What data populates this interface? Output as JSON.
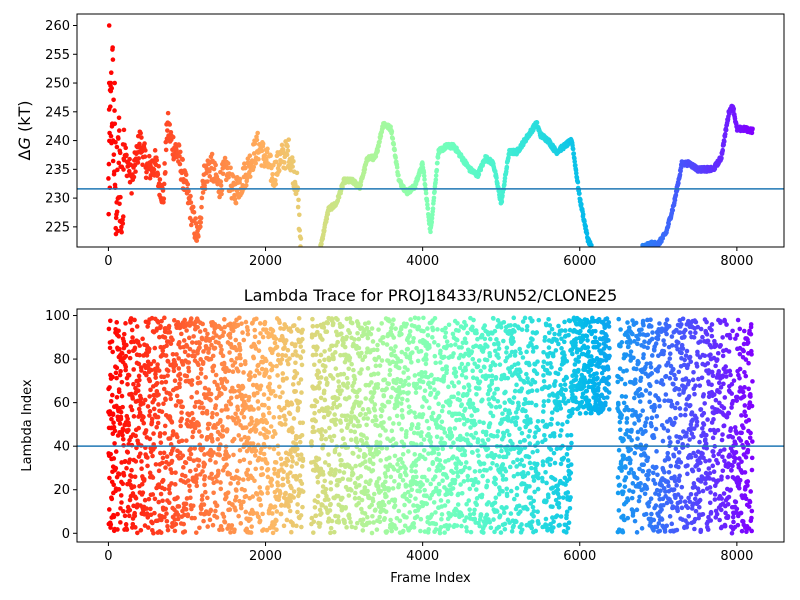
{
  "chart_data": [
    {
      "type": "scatter",
      "title": "",
      "xlabel": "",
      "ylabel": "ΔG (kT)",
      "ylabel_symbol": "Δ",
      "ylabel_var": "G",
      "ylabel_unit": " (kT)",
      "xlim": [
        -400,
        8600
      ],
      "ylim": [
        221.5,
        262
      ],
      "xticks": [
        0,
        2000,
        4000,
        6000,
        8000
      ],
      "yticks": [
        225,
        230,
        235,
        240,
        245,
        250,
        255,
        260
      ],
      "hline": 231.6,
      "hline_color": "#1f77b4",
      "grid": false,
      "colormap": "rainbow (reversed: red at start, violet at end)",
      "x_max": 8200,
      "segments": [
        {
          "x": [
            0,
            20,
            50,
            80,
            110,
            140,
            170,
            200
          ],
          "y": [
            230,
            240,
            250,
            235,
            228,
            238,
            225,
            245
          ],
          "style": "scatter"
        },
        {
          "x": [
            200,
            300,
            400,
            500,
            600,
            700,
            750,
            800,
            900,
            1000,
            1100,
            1150,
            1200,
            1300,
            1400,
            1500,
            1600,
            1700,
            1800,
            1900,
            2000,
            2100,
            2200,
            2300,
            2400,
            2450
          ],
          "y": [
            238,
            233,
            240,
            235,
            236,
            230,
            243,
            240,
            237,
            231,
            225,
            222,
            233,
            236,
            232,
            235,
            231,
            233,
            236,
            239,
            237,
            234,
            237,
            238,
            232,
            221.5
          ],
          "style": "dense"
        },
        {
          "x": [
            2700,
            2800,
            2900,
            3000,
            3100,
            3200,
            3300,
            3400,
            3500,
            3600,
            3700,
            3800,
            3900,
            4000,
            4100,
            4200,
            4300,
            4400,
            4500,
            4600,
            4700,
            4800,
            4900,
            5000,
            5100,
            5200,
            5300,
            5400,
            5450,
            5500,
            5600,
            5700,
            5800,
            5900,
            6000,
            6100,
            6150
          ],
          "y": [
            221.5,
            228,
            229,
            233,
            233,
            232,
            237,
            237,
            243,
            242,
            233,
            231,
            232,
            236,
            224,
            238,
            239,
            239,
            237,
            235,
            234,
            237,
            236,
            229,
            238,
            238,
            240,
            242,
            243,
            241,
            240,
            238,
            239,
            240,
            230,
            223,
            221.5
          ],
          "style": "line"
        },
        {
          "x": [
            6800,
            6900,
            7000,
            7100,
            7200,
            7300,
            7400,
            7500,
            7600,
            7700,
            7800,
            7900,
            7950,
            8000,
            8100,
            8200
          ],
          "y": [
            221.5,
            222,
            222,
            224,
            229,
            236,
            236,
            235,
            235,
            235,
            237,
            245,
            246,
            242,
            242,
            241.7
          ],
          "style": "line"
        }
      ]
    },
    {
      "type": "scatter",
      "title": "Lambda Trace for PROJ18433/RUN52/CLONE25",
      "xlabel": "Frame Index",
      "ylabel": "Lambda Index",
      "xlim": [
        -400,
        8600
      ],
      "ylim": [
        -4,
        103
      ],
      "xticks": [
        0,
        2000,
        4000,
        6000,
        8000
      ],
      "yticks": [
        0,
        20,
        40,
        60,
        80,
        100
      ],
      "hline": 40,
      "hline_color": "#1f77b4",
      "grid": false,
      "colormap": "rainbow (reversed: red at start, violet at end)",
      "x_max": 8200,
      "y_range": [
        0,
        99
      ],
      "point_count": 8200,
      "note_bands": [
        {
          "x": [
            0,
            2500
          ],
          "y": [
            0,
            99
          ]
        },
        {
          "x": [
            2500,
            5900
          ],
          "y": [
            0,
            99
          ]
        },
        {
          "x": [
            5900,
            6400
          ],
          "y": [
            60,
            99
          ]
        },
        {
          "x": [
            6400,
            8200
          ],
          "y": [
            0,
            99
          ]
        }
      ]
    }
  ]
}
